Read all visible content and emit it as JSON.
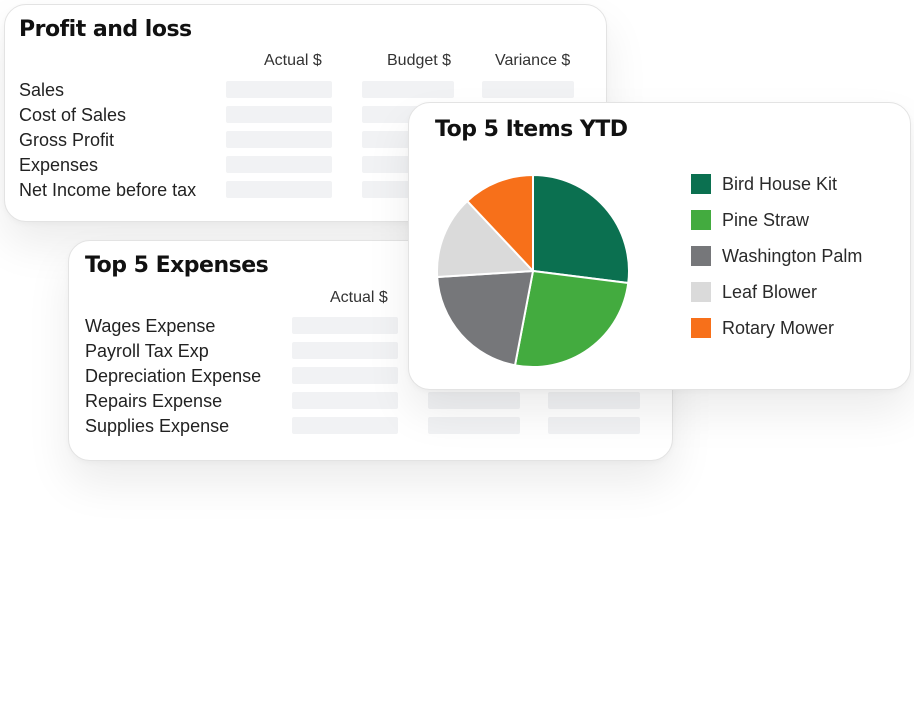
{
  "profit_and_loss": {
    "title": "Profit and loss",
    "columns": [
      "Actual $",
      "Budget $",
      "Variance $"
    ],
    "rows": [
      "Sales",
      "Cost of Sales",
      "Gross Profit",
      "Expenses",
      "Net Income before tax"
    ]
  },
  "top_expenses": {
    "title": "Top 5 Expenses",
    "columns": [
      "Actual $"
    ],
    "rows": [
      "Wages Expense",
      "Payroll Tax Exp",
      "Depreciation Expense",
      "Repairs Expense",
      "Supplies Expense"
    ]
  },
  "top_items": {
    "title": "Top 5 Items YTD",
    "legend": [
      {
        "label": "Bird House Kit",
        "color": "#0b7050"
      },
      {
        "label": "Pine Straw",
        "color": "#43ab3f"
      },
      {
        "label": "Washington Palm",
        "color": "#76777a"
      },
      {
        "label": "Leaf Blower",
        "color": "#dadada"
      },
      {
        "label": "Rotary Mower",
        "color": "#f7701a"
      }
    ]
  },
  "chart_data": {
    "type": "pie",
    "title": "Top 5 Items YTD",
    "categories": [
      "Bird House Kit",
      "Pine Straw",
      "Washington Palm",
      "Leaf Blower",
      "Rotary Mower"
    ],
    "values": [
      27,
      26,
      21,
      14,
      12
    ],
    "colors": [
      "#0b7050",
      "#43ab3f",
      "#76777a",
      "#dadada",
      "#f7701a"
    ],
    "legend_position": "right"
  }
}
